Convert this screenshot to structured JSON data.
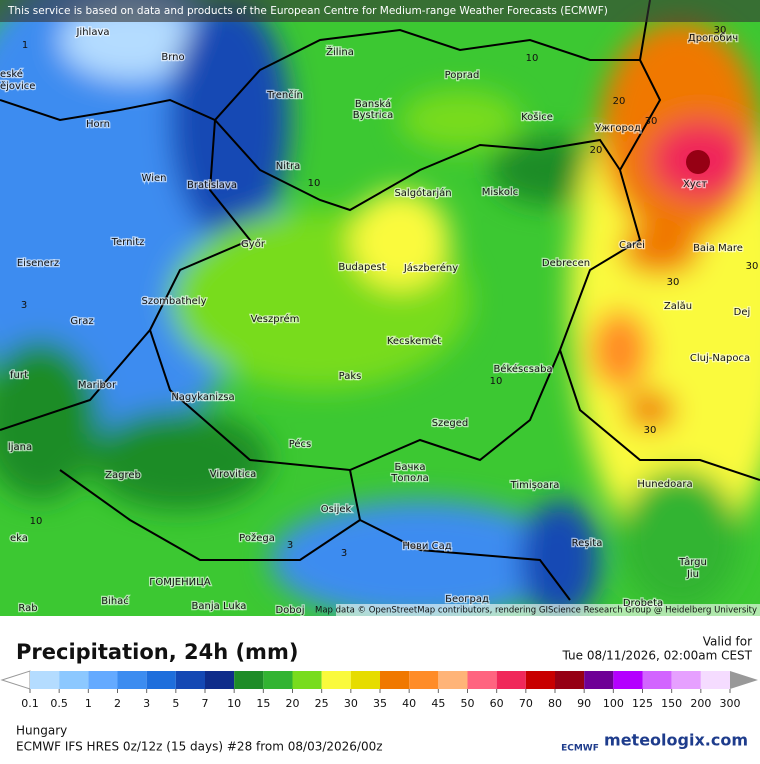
{
  "banner": "This service is based on data and products of the European Centre for Medium-range Weather Forecasts (ECMWF)",
  "map": {
    "cities": [
      "Jihlava",
      "Brno",
      "eské",
      "ějovice",
      "Žilina",
      "Дрогобич",
      "Poprad",
      "Trenčín",
      "Banská",
      "Bystrica",
      "Košice",
      "Ужгород",
      "Horn",
      "Nitra",
      "Хуст",
      "Wien",
      "Bratislava",
      "Salgótarján",
      "Miskolc",
      "Győr",
      "Ternitz",
      "Carei",
      "Baia Mare",
      "Eisenerz",
      "Budapest",
      "Jászberény",
      "Debrecen",
      "Szombathely",
      "Graz",
      "Veszprém",
      "Zalău",
      "Dej",
      "Kecskemét",
      "Cluj-Napoca",
      "furt",
      "Paks",
      "Békéscsaba",
      "Maribor",
      "Nagykanizsa",
      "Szeged",
      "ljana",
      "Pécs",
      "Бачка",
      "Топола",
      "Virovitica",
      "Zagreb",
      "Timișoara",
      "Hunedoara",
      "Osijek",
      "eka",
      "Požega",
      "Нови Сад",
      "Reșita",
      "Târgu",
      "Jiu",
      "ГОМЈЕНИЦА",
      "Banja Luka",
      "Doboj",
      "Bihać",
      "Rab",
      "Београд",
      "Drobeta"
    ],
    "contour_labels": [
      "1",
      "10",
      "20",
      "30",
      "30",
      "20",
      "10",
      "30",
      "10",
      "30",
      "3",
      "10",
      "3",
      "3",
      "30"
    ],
    "attribution": "Map data © OpenStreetMap contributors, rendering GIScience Research Group @ Heidelberg University"
  },
  "title": "Precipitation, 24h (mm)",
  "valid_label": "Valid for",
  "valid_time": "Tue 08/11/2026, 02:00am CEST",
  "legend": {
    "ticks": [
      0.1,
      0.5,
      1,
      2,
      3,
      5,
      7,
      10,
      15,
      20,
      25,
      30,
      35,
      40,
      45,
      50,
      60,
      70,
      80,
      90,
      100,
      125,
      150,
      200,
      300
    ],
    "colors": [
      "#b4dcff",
      "#8cc8ff",
      "#64aaff",
      "#3c8cf0",
      "#1e6edc",
      "#1448b4",
      "#0f2c8a",
      "#1e8c28",
      "#32b432",
      "#78dc1e",
      "#fafa3c",
      "#e6dc00",
      "#f07800",
      "#ff8c28",
      "#ffb478",
      "#ff6480",
      "#f0285a",
      "#c80000",
      "#960014",
      "#6e0096",
      "#b400ff",
      "#d264ff",
      "#e6a0ff",
      "#f5dcff",
      "#dcdcdc"
    ]
  },
  "region": "Hungary",
  "model": "ECMWF IFS HRES 0z/12z (15 days) #28 from  08/03/2026/00z",
  "logos": [
    "ECMWF",
    "meteologix.com"
  ]
}
